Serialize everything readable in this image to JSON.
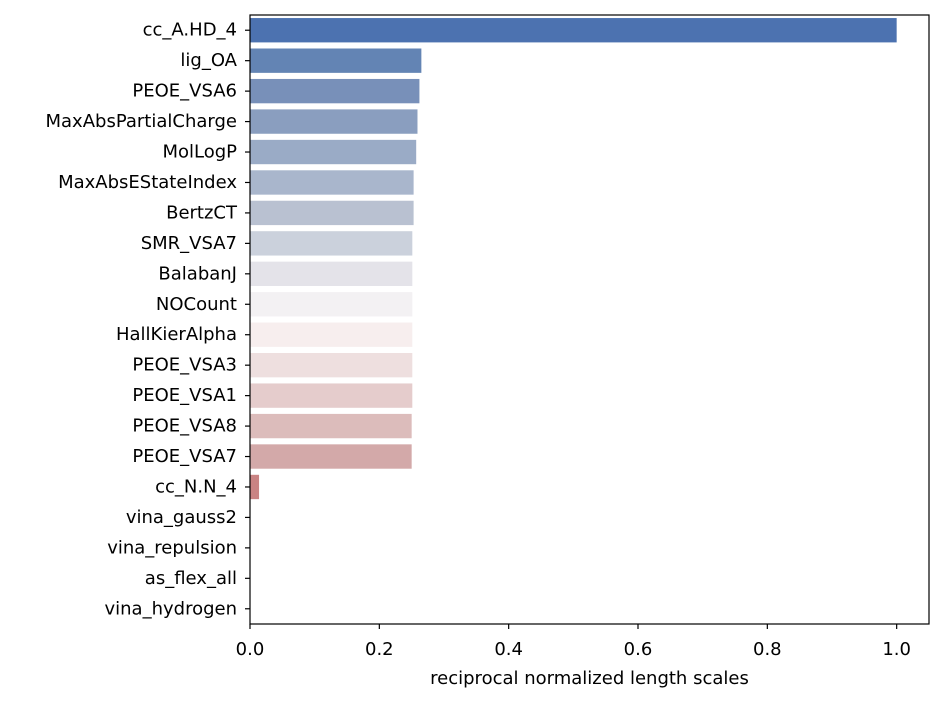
{
  "chart_data": {
    "type": "bar",
    "orientation": "horizontal",
    "categories": [
      "cc_A.HD_4",
      "lig_OA",
      "PEOE_VSA6",
      "MaxAbsPartialCharge",
      "MolLogP",
      "MaxAbsEStateIndex",
      "BertzCT",
      "SMR_VSA7",
      "BalabanJ",
      "NOCount",
      "HallKierAlpha",
      "PEOE_VSA3",
      "PEOE_VSA1",
      "PEOE_VSA8",
      "PEOE_VSA7",
      "cc_N.N_4",
      "vina_gauss2",
      "vina_repulsion",
      "as_flex_all",
      "vina_hydrogen"
    ],
    "values": [
      1.0,
      0.265,
      0.262,
      0.259,
      0.257,
      0.253,
      0.253,
      0.251,
      0.251,
      0.251,
      0.251,
      0.251,
      0.251,
      0.25,
      0.25,
      0.014,
      0.0,
      0.0,
      0.0,
      0.0
    ],
    "colors": [
      "#4c72b0",
      "#6384b4",
      "#7890b9",
      "#8a9ebf",
      "#9aabc6",
      "#a9b6cc",
      "#b9c1d1",
      "#cbd1dc",
      "#e4e3e9",
      "#f3f1f3",
      "#f7eeee",
      "#eedfdf",
      "#e5cccc",
      "#dcbcbb",
      "#d3a9a9",
      "#c98383",
      "#c48181",
      "#c28080",
      "#c07f7f",
      "#be7e7e"
    ],
    "xlabel": "reciprocal normalized length scales",
    "ylabel": "",
    "title": "",
    "xlim": [
      0.0,
      1.05
    ],
    "xticks": [
      "0.0",
      "0.2",
      "0.4",
      "0.6",
      "0.8",
      "1.0"
    ],
    "xtick_values": [
      0.0,
      0.2,
      0.4,
      0.6,
      0.8,
      1.0
    ],
    "grid": false
  }
}
